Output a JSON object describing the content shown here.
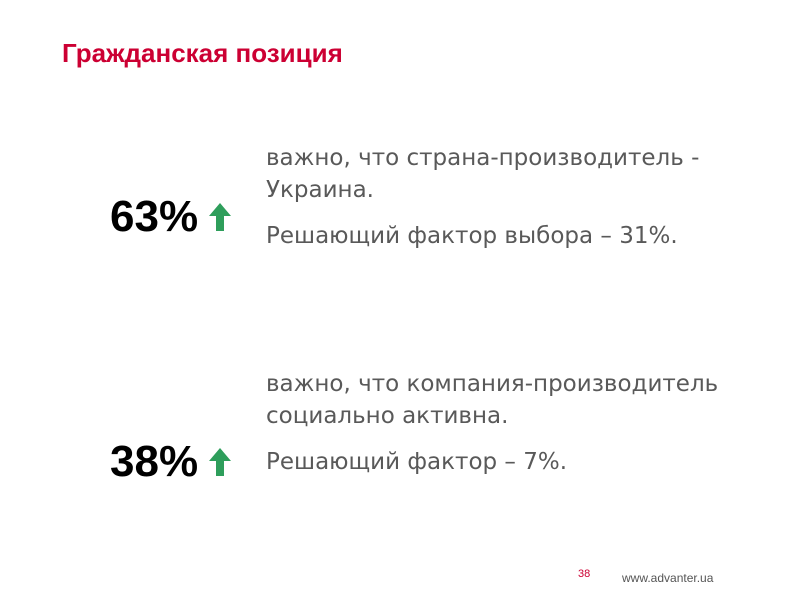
{
  "slide": {
    "title": "Гражданская позиция",
    "accent_color": "#cc0033",
    "arrow_color": "#2e9e5b",
    "items": [
      {
        "stat": "63%",
        "trend_icon": "arrow-up-icon",
        "description": "важно, что страна-производитель - Украина.",
        "factor": "Решающий фактор выбора – 31%."
      },
      {
        "stat": "38%",
        "trend_icon": "arrow-up-icon",
        "description": "важно, что компания-производитель социально активна.",
        "factor": "Решающий фактор – 7%."
      }
    ],
    "page_number": "38",
    "website": "www.advanter.ua"
  }
}
